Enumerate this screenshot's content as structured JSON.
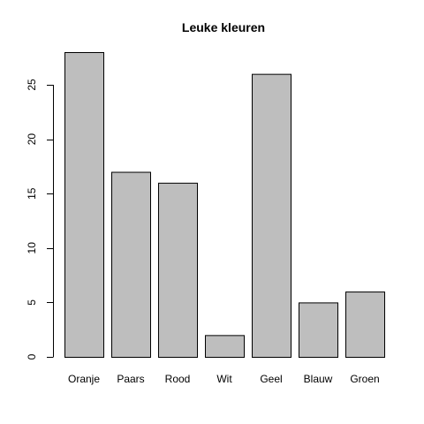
{
  "chart_data": {
    "type": "bar",
    "title": "Leuke kleuren",
    "xlabel": "",
    "ylabel": "",
    "categories": [
      "Oranje",
      "Paars",
      "Rood",
      "Wit",
      "Geel",
      "Blauw",
      "Groen"
    ],
    "values": [
      28,
      17,
      16,
      2,
      26,
      5,
      6
    ],
    "yticks": [
      0,
      5,
      10,
      15,
      20,
      25
    ],
    "ylim": [
      0,
      28
    ],
    "bar_color": "#bebebe",
    "grid": false,
    "legend": "none"
  }
}
